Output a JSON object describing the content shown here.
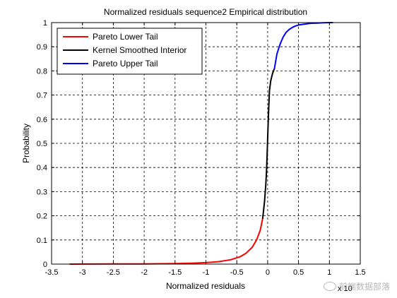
{
  "chart_data": {
    "type": "line",
    "title": "Normalized residuals sequence2 Empirical distribution",
    "xlabel": "Normalized residuals",
    "ylabel": "Probability",
    "x_exponent_label": "x 10",
    "xlim": [
      -3.5,
      1.5
    ],
    "ylim": [
      0,
      1
    ],
    "xticks": [
      "-3.5",
      "-3",
      "-2.5",
      "-2",
      "-1.5",
      "-1",
      "-0.5",
      "0",
      "0.5",
      "1",
      "1.5"
    ],
    "yticks": [
      "0",
      "0.1",
      "0.2",
      "0.3",
      "0.4",
      "0.5",
      "0.6",
      "0.7",
      "0.8",
      "0.9",
      "1"
    ],
    "xtick_values": [
      -3.5,
      -3,
      -2.5,
      -2,
      -1.5,
      -1,
      -0.5,
      0,
      0.5,
      1,
      1.5
    ],
    "ytick_values": [
      0,
      0.1,
      0.2,
      0.3,
      0.4,
      0.5,
      0.6,
      0.7,
      0.8,
      0.9,
      1
    ],
    "grid": true,
    "legend_position": "top-left",
    "series": [
      {
        "name": "Pareto Lower Tail",
        "color": "#ff0000",
        "x": [
          -3.2,
          -2.5,
          -2.0,
          -1.5,
          -1.2,
          -1.0,
          -0.8,
          -0.6,
          -0.45,
          -0.35,
          -0.25,
          -0.18,
          -0.12,
          -0.08
        ],
        "y": [
          0.0,
          0.0005,
          0.001,
          0.002,
          0.004,
          0.006,
          0.01,
          0.018,
          0.03,
          0.045,
          0.07,
          0.1,
          0.14,
          0.19
        ]
      },
      {
        "name": "Kernel Smoothed Interior",
        "color": "#000000",
        "x": [
          -0.08,
          -0.05,
          -0.03,
          -0.02,
          -0.01,
          0.0,
          0.01,
          0.02,
          0.03,
          0.05,
          0.08,
          0.11
        ],
        "y": [
          0.19,
          0.26,
          0.33,
          0.38,
          0.44,
          0.52,
          0.6,
          0.66,
          0.72,
          0.76,
          0.79,
          0.81
        ]
      },
      {
        "name": "Pareto Upper Tail",
        "color": "#0000ff",
        "x": [
          0.11,
          0.15,
          0.2,
          0.25,
          0.3,
          0.35,
          0.4,
          0.45,
          0.5,
          0.6,
          0.7,
          0.8,
          0.9,
          1.0,
          1.05
        ],
        "y": [
          0.81,
          0.87,
          0.91,
          0.94,
          0.96,
          0.972,
          0.98,
          0.986,
          0.99,
          0.994,
          0.997,
          0.998,
          0.999,
          1.0,
          1.0
        ]
      }
    ]
  },
  "watermark": {
    "text": "前端数据部落"
  }
}
